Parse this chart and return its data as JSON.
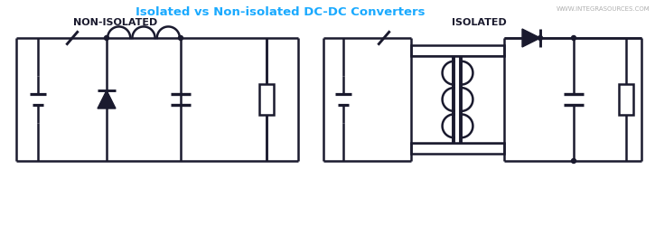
{
  "title": "Isolated vs Non-isolated DC-DC Converters",
  "title_color": "#1AAAFF",
  "watermark": "WWW.INTEGRASOURCES.COM",
  "label_non_isolated": "NON-ISOLATED",
  "label_isolated": "ISOLATED",
  "bg_color": "#FFFFFF",
  "line_color": "#1a1a2e",
  "line_width": 1.8,
  "figsize": [
    7.25,
    2.5
  ],
  "dpi": 100
}
